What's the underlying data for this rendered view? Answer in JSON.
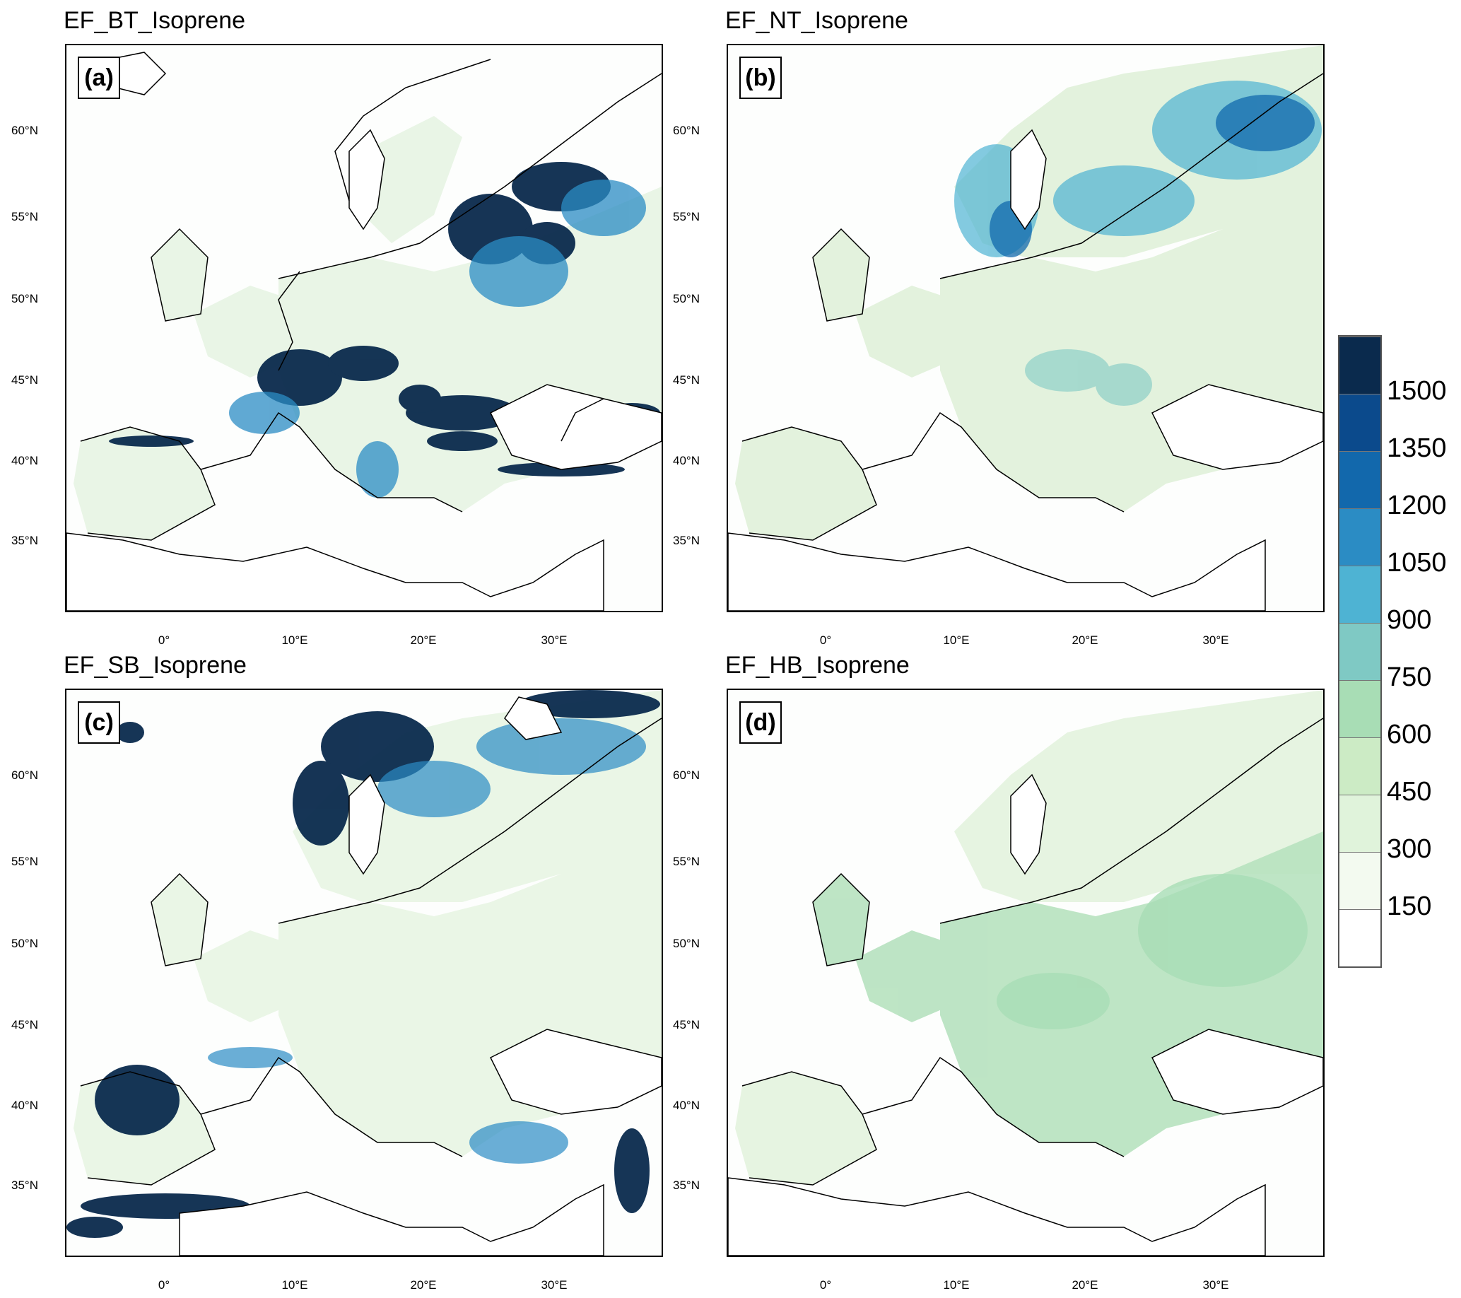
{
  "panels": [
    {
      "id": "a",
      "title": "EF_BT_Isoprene",
      "label": "(a)"
    },
    {
      "id": "b",
      "title": "EF_NT_Isoprene",
      "label": "(b)"
    },
    {
      "id": "c",
      "title": "EF_SB_Isoprene",
      "label": "(c)"
    },
    {
      "id": "d",
      "title": "EF_HB_Isoprene",
      "label": "(d)"
    }
  ],
  "lat_labels": [
    "60°N",
    "55°N",
    "50°N",
    "45°N",
    "40°N",
    "35°N"
  ],
  "lon_labels": [
    "0°",
    "10°E",
    "20°E",
    "30°E"
  ],
  "colorbar": {
    "labels": [
      "1500",
      "1350",
      "1200",
      "1050",
      "900",
      "750",
      "600",
      "450",
      "300",
      "150"
    ],
    "colors": [
      "#0a2a4d",
      "#0b4a8c",
      "#1268ac",
      "#2b8cc4",
      "#4eb3d3",
      "#7fc9c4",
      "#a8ddb5",
      "#ccebc5",
      "#e0f3db",
      "#f3faf0",
      "#ffffff"
    ]
  }
}
